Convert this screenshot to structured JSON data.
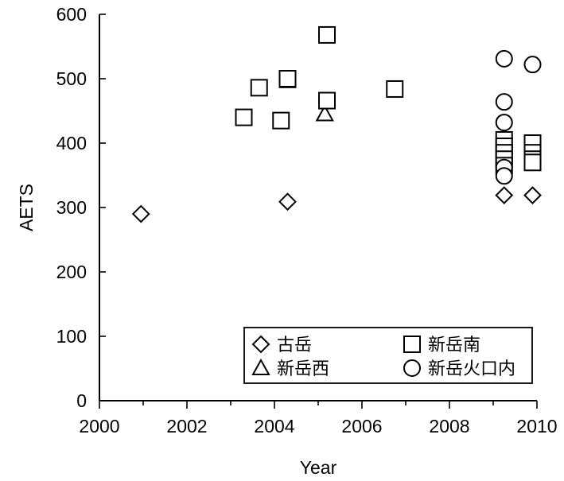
{
  "chart_data": {
    "type": "scatter",
    "xlabel": "Year",
    "ylabel": "AETS",
    "xlim": [
      2000,
      2010
    ],
    "ylim": [
      0,
      600
    ],
    "xticks": [
      2000,
      2002,
      2004,
      2006,
      2008,
      2010
    ],
    "yticks": [
      0,
      100,
      200,
      300,
      400,
      500,
      600
    ],
    "xtick_labels": [
      "2000",
      "2002",
      "2004",
      "2006",
      "2008",
      "2010"
    ],
    "ytick_labels": [
      "0",
      "100",
      "200",
      "300",
      "400",
      "500",
      "600"
    ],
    "grid": false,
    "legend_position": "bottom-right",
    "series": [
      {
        "name": "古岳",
        "marker": "diamond",
        "x": [
          2000.95,
          2004.3,
          2009.25,
          2009.9
        ],
        "y": [
          290,
          309,
          319,
          319
        ]
      },
      {
        "name": "新岳西",
        "marker": "triangle",
        "x": [
          2005.15
        ],
        "y": [
          445
        ]
      },
      {
        "name": "新岳南",
        "marker": "square",
        "x": [
          2003.3,
          2003.65,
          2004.15,
          2004.3,
          2004.3,
          2005.2,
          2005.2,
          2006.75,
          2009.25,
          2009.25,
          2009.25,
          2009.25,
          2009.25,
          2009.9,
          2009.9,
          2009.9,
          2009.9
        ],
        "y": [
          440,
          486,
          435,
          499,
          500,
          466,
          568,
          484,
          405,
          395,
          385,
          375,
          365,
          400,
          385,
          375,
          370
        ]
      },
      {
        "name": "新岳火口内",
        "marker": "circle",
        "x": [
          2009.25,
          2009.25,
          2009.25,
          2009.25,
          2009.25,
          2009.9
        ],
        "y": [
          531,
          464,
          432,
          362,
          349,
          522
        ]
      }
    ]
  }
}
